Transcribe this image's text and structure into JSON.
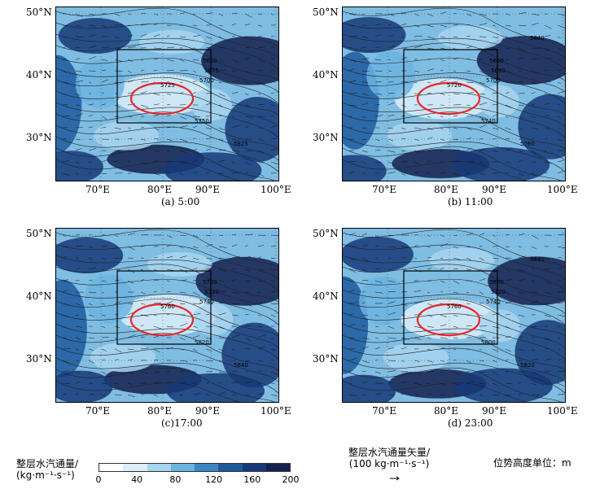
{
  "panels": [
    {
      "caption": "(a) 5:00",
      "latLabels": [
        "50°N",
        "40°N",
        "30°N"
      ],
      "lonLabels": [
        "70°E",
        "80°E",
        "90°E",
        "100°E"
      ],
      "contourLabels": [
        "5650",
        "5675",
        "5700",
        "5725",
        "5750",
        "5825"
      ]
    },
    {
      "caption": "(b) 11:00",
      "latLabels": [
        "50°N",
        "40°N",
        "30°N"
      ],
      "lonLabels": [
        "70°E",
        "80°E",
        "90°E",
        "100°E"
      ],
      "contourLabels": [
        "5660",
        "5680",
        "5700",
        "5720",
        "5740",
        "5760",
        "5840"
      ]
    },
    {
      "caption": "(c)17:00",
      "latLabels": [
        "50°N",
        "40°N",
        "30°N"
      ],
      "lonLabels": [
        "70°E",
        "80°E",
        "90°E",
        "100°E"
      ],
      "contourLabels": [
        "5700",
        "5720",
        "5740",
        "5760",
        "5820",
        "5840"
      ]
    },
    {
      "caption": "(d) 23:00",
      "latLabels": [
        "50°N",
        "40°N",
        "30°N"
      ],
      "lonLabels": [
        "70°E",
        "80°E",
        "90°E",
        "100°E"
      ],
      "contourLabels": [
        "5680",
        "5720",
        "5740",
        "5760",
        "5800",
        "5820",
        "5840"
      ]
    }
  ],
  "legend": {
    "colorbar_title_line1": "整层水汽通量/",
    "colorbar_title_line2": "(kg·m⁻¹·s⁻¹)",
    "colorbar_ticks": [
      "0",
      "40",
      "80",
      "120",
      "160",
      "200"
    ],
    "colorbar_colors": [
      "#ffffff",
      "#dbeef9",
      "#a8d5ef",
      "#6cb4e0",
      "#3b86c4",
      "#1d5a9e",
      "#163a78",
      "#14214f"
    ],
    "vector_title_line1": "整层水汽通量矢量/",
    "vector_title_line2": "(100 kg·m⁻¹·s⁻¹)",
    "height_unit_text": "位势高度单位：m"
  }
}
